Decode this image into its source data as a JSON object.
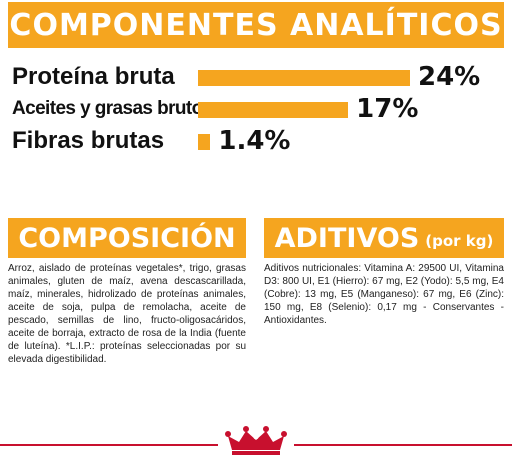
{
  "header": {
    "title": "COMPONENTES ANALÍTICOS"
  },
  "chart_data": {
    "type": "bar",
    "orientation": "horizontal",
    "categories": [
      "Proteína bruta",
      "Aceites y grasas brutos",
      "Fibras brutas"
    ],
    "values": [
      24,
      17,
      1.4
    ],
    "value_labels": [
      "24%",
      "17%",
      "1.4%"
    ],
    "unit": "%",
    "xlim": [
      0,
      24
    ],
    "grid": false,
    "legend": "none"
  },
  "composicion": {
    "title": "COMPOSICIÓN",
    "text": "Arroz, aislado de proteínas vegetales*, trigo, grasas animales, gluten de maíz, avena descascarillada, maíz, minerales, hidrolizado de proteínas animales, aceite de soja, pulpa de remolacha, aceite de pescado, semillas de lino, fructo-oligosacáridos, aceite de borraja, extracto de rosa de la India (fuente de luteína). *L.I.P.: proteínas seleccionadas por su elevada digestibilidad."
  },
  "aditivos": {
    "title": "ADITIVOS",
    "subtitle": "(por kg)",
    "text": "Aditivos nutricionales: Vitamina A: 29500 UI, Vitamina D3: 800 UI, E1 (Hierro): 67 mg, E2 (Yodo): 5,5 mg, E4 (Cobre): 13 mg, E5 (Manganeso): 67 mg, E6 (Zinc): 150 mg, E8 (Selenio): 0,17 mg - Conservantes - Antioxidantes."
  },
  "colors": {
    "accent": "#f5a51f",
    "brand_red": "#c8102e"
  },
  "logo": {
    "icon": "royal-canin-crown-icon"
  }
}
